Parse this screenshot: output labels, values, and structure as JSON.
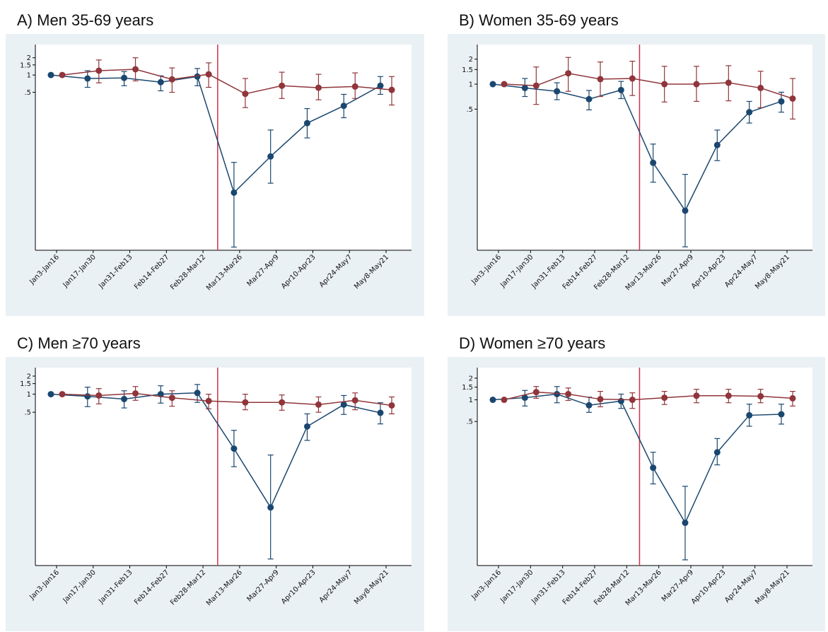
{
  "chart_data": [
    {
      "type": "line",
      "title": "A) Men 35-69 years",
      "categories": [
        "Jan3-Jan16",
        "Jan17-Jan30",
        "Jan31-Feb13",
        "Feb14-Feb27",
        "Feb28-Mar12",
        "Mar13-Mar26",
        "Mar27-Apr9",
        "Apr10-Apr23",
        "Apr24-May7",
        "May8-May21"
      ],
      "series": [
        {
          "color": "#1a476f",
          "values": [
            1,
            0.87,
            0.89,
            0.75,
            0.94,
            0.0089,
            0.038,
            0.145,
            0.29,
            0.65
          ],
          "lower": [
            null,
            0.61,
            0.65,
            0.53,
            0.65,
            0.001,
            0.013,
            0.08,
            0.18,
            0.46
          ],
          "upper": [
            null,
            1.19,
            1.15,
            0.97,
            1.3,
            0.03,
            0.11,
            0.26,
            0.46,
            0.94
          ]
        },
        {
          "color": "#90353b",
          "values": [
            1,
            1.19,
            1.26,
            0.84,
            1.03,
            0.47,
            0.65,
            0.6,
            0.63,
            0.55
          ],
          "lower": [
            null,
            0.73,
            0.79,
            0.5,
            0.61,
            0.27,
            0.39,
            0.37,
            0.39,
            0.3
          ],
          "upper": [
            null,
            1.83,
            2.0,
            1.33,
            1.63,
            0.87,
            1.12,
            1.03,
            1.09,
            0.94
          ]
        }
      ],
      "log_scale": true,
      "ylim": [
        0.00088,
        3.4
      ],
      "yticks": [
        {
          "value": 0.5,
          "label": ".5"
        },
        1,
        1.5,
        2
      ],
      "vline": 4.4,
      "vline_color": "#d0304a"
    },
    {
      "type": "line",
      "title": "B) Women 35-69 years",
      "categories": [
        "Jan3-Jan16",
        "Jan17-Jan30",
        "Jan31-Feb13",
        "Feb14-Feb27",
        "Feb28-Mar12",
        "Mar13-Mar26",
        "Mar27-Apr9",
        "Apr10-Apr23",
        "Apr24-May7",
        "May8-May21"
      ],
      "series": [
        {
          "color": "#1a476f",
          "values": [
            1,
            0.9,
            0.82,
            0.66,
            0.85,
            0.113,
            0.03,
            0.185,
            0.46,
            0.62
          ],
          "lower": [
            null,
            0.71,
            0.65,
            0.49,
            0.67,
            0.066,
            0.011,
            0.12,
            0.34,
            0.46
          ],
          "upper": [
            null,
            1.17,
            1.04,
            0.84,
            1.08,
            0.19,
            0.082,
            0.28,
            0.62,
            0.8
          ]
        },
        {
          "color": "#90353b",
          "values": [
            1,
            0.96,
            1.35,
            1.15,
            1.17,
            1.0,
            1.0,
            1.04,
            0.9,
            0.67
          ],
          "lower": [
            null,
            0.57,
            0.82,
            0.71,
            0.73,
            0.61,
            0.62,
            0.63,
            0.52,
            0.38
          ],
          "upper": [
            null,
            1.61,
            2.1,
            1.85,
            1.89,
            1.64,
            1.64,
            1.67,
            1.43,
            1.17
          ]
        }
      ],
      "log_scale": true,
      "ylim": [
        0.01,
        3.0
      ],
      "yticks": [
        {
          "value": 0.5,
          "label": ".5"
        },
        1,
        1.5,
        2
      ],
      "vline": 4.4,
      "vline_color": "#d0304a"
    },
    {
      "type": "line",
      "title": "C) Men ≥70 years",
      "categories": [
        "Jan3-Jan16",
        "Jan17-Jan30",
        "Jan31-Feb13",
        "Feb14-Feb27",
        "Feb28-Mar12",
        "Mar13-Mar26",
        "Mar27-Apr9",
        "Apr10-Apr23",
        "Apr24-May7",
        "May8-May21"
      ],
      "series": [
        {
          "color": "#1a476f",
          "values": [
            1,
            0.92,
            0.83,
            1.0,
            1.05,
            0.124,
            0.013,
            0.29,
            0.67,
            0.49
          ],
          "lower": [
            null,
            0.62,
            0.59,
            0.71,
            0.73,
            0.062,
            0.0018,
            0.17,
            0.46,
            0.32
          ],
          "upper": [
            null,
            1.31,
            1.14,
            1.38,
            1.45,
            0.25,
            0.097,
            0.47,
            0.95,
            0.72
          ]
        },
        {
          "color": "#90353b",
          "values": [
            1,
            0.95,
            1.03,
            0.87,
            0.77,
            0.73,
            0.73,
            0.67,
            0.79,
            0.65
          ],
          "lower": [
            null,
            0.69,
            0.79,
            0.63,
            0.57,
            0.55,
            0.54,
            0.5,
            0.55,
            0.47
          ],
          "upper": [
            null,
            1.24,
            1.34,
            1.14,
            1.0,
            1.0,
            0.97,
            0.9,
            1.05,
            0.9
          ]
        }
      ],
      "log_scale": true,
      "ylim": [
        0.0014,
        2.77
      ],
      "yticks": [
        {
          "value": 0.5,
          "label": ".5"
        },
        1,
        1.5,
        2
      ],
      "vline": 4.4,
      "vline_color": "#d0304a"
    },
    {
      "type": "line",
      "title": "D) Women ≥70 years",
      "categories": [
        "Jan3-Jan16",
        "Jan17-Jan30",
        "Jan31-Feb13",
        "Feb14-Feb27",
        "Feb28-Mar12",
        "Mar13-Mar26",
        "Mar27-Apr9",
        "Apr10-Apr23",
        "Apr24-May7",
        "May8-May21"
      ],
      "series": [
        {
          "color": "#1a476f",
          "values": [
            1,
            1.07,
            1.2,
            0.84,
            0.96,
            0.114,
            0.0196,
            0.187,
            0.61,
            0.63
          ],
          "lower": [
            null,
            0.82,
            0.91,
            0.67,
            0.76,
            0.068,
            0.006,
            0.125,
            0.43,
            0.46
          ],
          "upper": [
            null,
            1.35,
            1.53,
            1.09,
            1.2,
            0.187,
            0.063,
            0.29,
            0.87,
            0.87
          ]
        },
        {
          "color": "#90353b",
          "values": [
            1,
            1.28,
            1.2,
            1.02,
            1.0,
            1.07,
            1.14,
            1.14,
            1.12,
            1.05
          ],
          "lower": [
            null,
            1.05,
            0.98,
            0.8,
            0.76,
            0.86,
            0.91,
            0.91,
            0.91,
            0.82
          ],
          "upper": [
            null,
            1.53,
            1.46,
            1.31,
            1.25,
            1.31,
            1.4,
            1.4,
            1.4,
            1.31
          ]
        }
      ],
      "log_scale": true,
      "ylim": [
        0.005,
        2.8
      ],
      "yticks": [
        {
          "value": 0.5,
          "label": ".5"
        },
        1,
        1.5,
        2
      ],
      "vline": 4.4,
      "vline_color": "#d0304a"
    }
  ]
}
